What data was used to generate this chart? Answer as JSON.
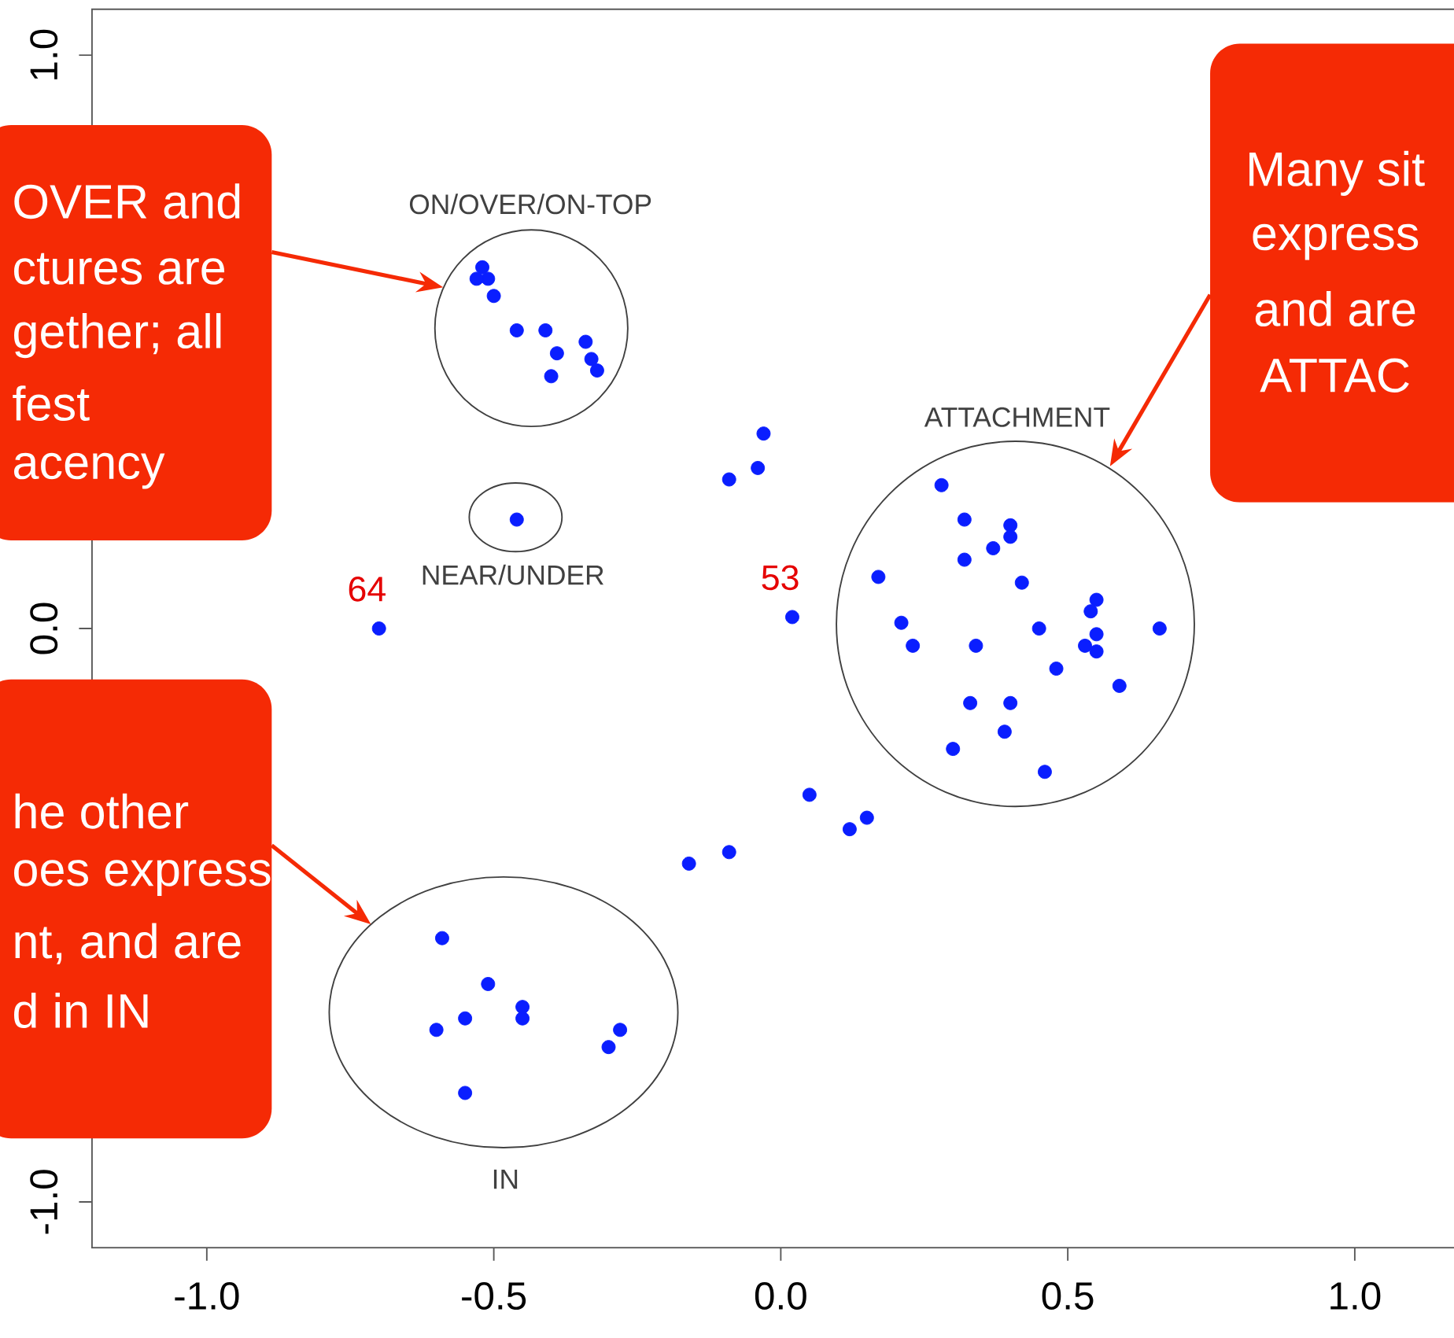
{
  "chart_data": {
    "type": "scatter",
    "x": [
      -0.52,
      -0.51,
      -0.53,
      -0.5,
      -0.46,
      -0.41,
      -0.34,
      -0.39,
      -0.33,
      -0.32,
      -0.4,
      -0.46,
      -0.7,
      0.02,
      -0.03,
      -0.09,
      -0.04,
      0.28,
      0.32,
      0.4,
      0.4,
      0.37,
      0.32,
      0.17,
      0.42,
      0.55,
      0.54,
      0.21,
      0.45,
      0.66,
      0.55,
      0.23,
      0.34,
      0.53,
      0.55,
      0.48,
      0.59,
      0.33,
      0.4,
      0.39,
      0.3,
      0.46,
      0.05,
      0.15,
      0.12,
      -0.09,
      -0.16,
      -0.59,
      -0.51,
      -0.45,
      -0.45,
      -0.55,
      -0.6,
      -0.28,
      -0.3,
      -0.55
    ],
    "values": [
      0.63,
      0.61,
      0.61,
      0.58,
      0.52,
      0.52,
      0.5,
      0.48,
      0.47,
      0.45,
      0.44,
      0.19,
      0.0,
      0.02,
      0.34,
      0.26,
      0.28,
      0.25,
      0.19,
      0.18,
      0.16,
      0.14,
      0.12,
      0.09,
      0.08,
      0.05,
      0.03,
      0.01,
      0.0,
      0.0,
      -0.01,
      -0.03,
      -0.03,
      -0.03,
      -0.04,
      -0.07,
      -0.1,
      -0.13,
      -0.13,
      -0.18,
      -0.21,
      -0.25,
      -0.29,
      -0.33,
      -0.35,
      -0.39,
      -0.41,
      -0.54,
      -0.62,
      -0.66,
      -0.68,
      -0.68,
      -0.7,
      -0.7,
      -0.73,
      -0.81
    ],
    "color": "#0a1eff",
    "marker": "circle",
    "xlim": [
      -1.2,
      1.2
    ],
    "ylim": [
      -1.08,
      1.08
    ],
    "xticks": [
      {
        "value": -1.0,
        "label": "-1.0"
      },
      -0.5,
      {
        "value": 0.0,
        "label": "0.0"
      },
      0.5,
      {
        "value": 1.0,
        "label": "1.0"
      }
    ],
    "yticks": [
      {
        "value": -1.0,
        "label": "-1.0"
      },
      {
        "value": 0.0,
        "label": "0.0"
      },
      {
        "value": 1.0,
        "label": "1.0"
      }
    ],
    "annotations": [
      {
        "text": "64",
        "x": -0.7,
        "y": 0.0
      },
      {
        "text": "53",
        "x": 0.02,
        "y": 0.02
      },
      "ON/OVER/ON-TOP",
      "NEAR/UNDER",
      "ATTACHMENT",
      "IN",
      "OVER and",
      "ctures are",
      "gether; all",
      "fest",
      "acency",
      "he other",
      "oes express",
      "nt, and are",
      "d in IN",
      "Many sit",
      "express",
      "and are",
      "ATTAC"
    ]
  }
}
